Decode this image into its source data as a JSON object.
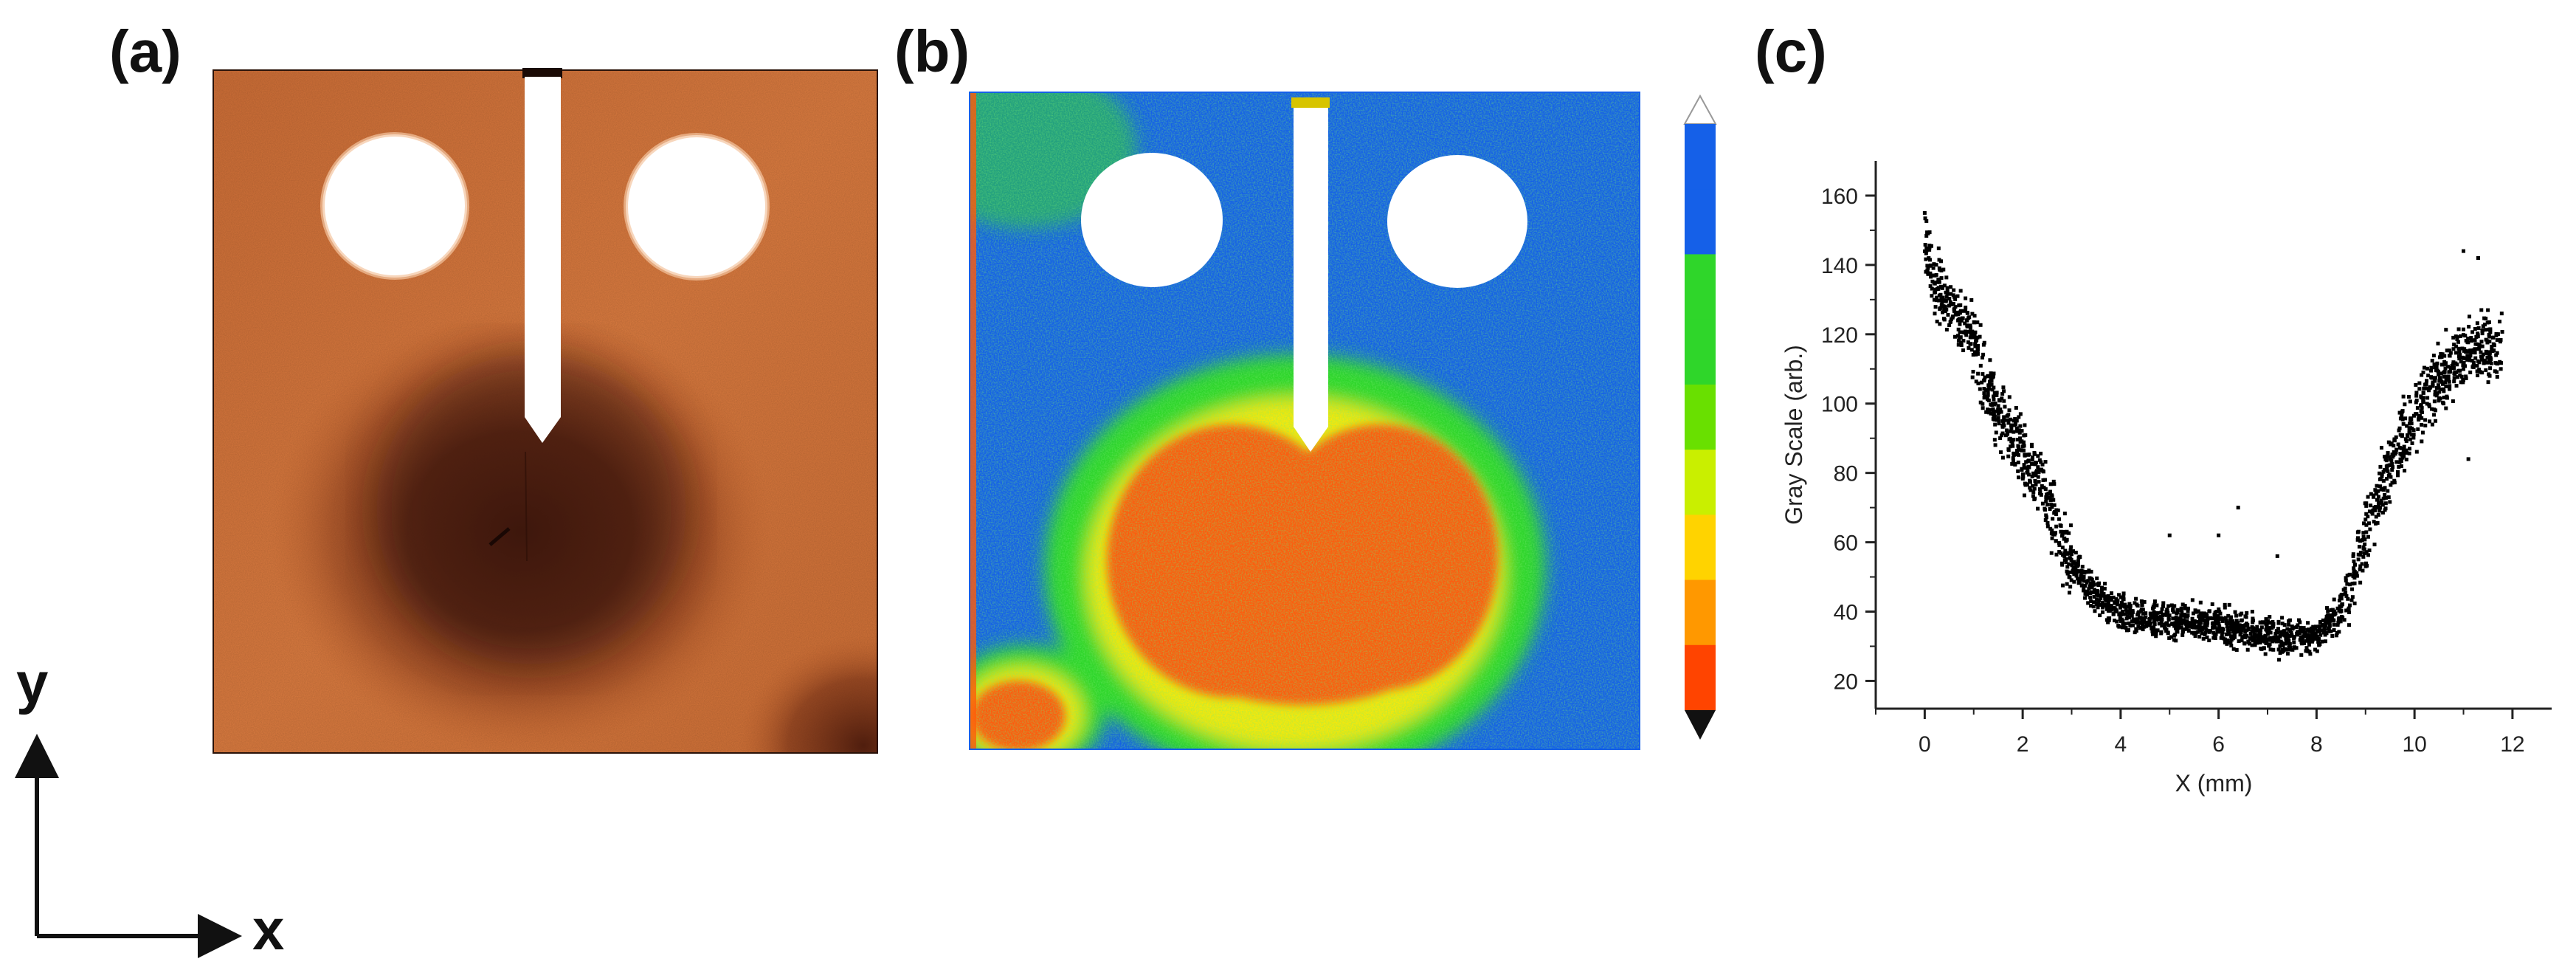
{
  "panels": {
    "a": "(a)",
    "b": "(b)",
    "c": "(c)"
  },
  "coord_axes": {
    "y": "y",
    "x": "x"
  },
  "colors": {
    "specimen_orange": "#d9763a",
    "specimen_dark": "#3a140a",
    "map_blue": "#1560e8",
    "map_green": "#2fd62a",
    "map_yellow": "#f4e80c",
    "map_orange": "#ff5a0a",
    "scatter": "#000000"
  },
  "colorbar": {
    "levels": [
      "#1560e8",
      "#1560e8",
      "#2fd62a",
      "#2fd62a",
      "#69e000",
      "#c9ef00",
      "#ffd300",
      "#ff9800",
      "#ff4400"
    ],
    "top_cap": "triangle-up-white",
    "bottom_cap": "triangle-down-black"
  },
  "chart_data": {
    "type": "scatter",
    "xlabel": "X (mm)",
    "ylabel": "Gray Scale (arb.)",
    "xlim": [
      -1,
      12.8
    ],
    "ylim": [
      12,
      170
    ],
    "xticks": [
      0,
      2,
      4,
      6,
      8,
      10,
      12
    ],
    "yticks": [
      20,
      40,
      60,
      80,
      100,
      120,
      140,
      160
    ],
    "grid": false,
    "trend": [
      {
        "x": 0.0,
        "y": 148
      },
      {
        "x": 0.2,
        "y": 135
      },
      {
        "x": 0.5,
        "y": 128
      },
      {
        "x": 0.8,
        "y": 122
      },
      {
        "x": 1.0,
        "y": 118
      },
      {
        "x": 1.3,
        "y": 104
      },
      {
        "x": 1.6,
        "y": 95
      },
      {
        "x": 2.0,
        "y": 85
      },
      {
        "x": 2.4,
        "y": 76
      },
      {
        "x": 2.8,
        "y": 60
      },
      {
        "x": 3.0,
        "y": 53
      },
      {
        "x": 3.5,
        "y": 45
      },
      {
        "x": 4.0,
        "y": 39
      },
      {
        "x": 4.5,
        "y": 38
      },
      {
        "x": 5.0,
        "y": 37
      },
      {
        "x": 5.5,
        "y": 37
      },
      {
        "x": 6.0,
        "y": 36
      },
      {
        "x": 6.5,
        "y": 35
      },
      {
        "x": 7.0,
        "y": 33
      },
      {
        "x": 7.5,
        "y": 32
      },
      {
        "x": 8.0,
        "y": 33
      },
      {
        "x": 8.5,
        "y": 40
      },
      {
        "x": 8.8,
        "y": 52
      },
      {
        "x": 9.2,
        "y": 72
      },
      {
        "x": 9.6,
        "y": 85
      },
      {
        "x": 10.0,
        "y": 98
      },
      {
        "x": 10.4,
        "y": 105
      },
      {
        "x": 10.8,
        "y": 112
      },
      {
        "x": 11.2,
        "y": 116
      },
      {
        "x": 11.5,
        "y": 115
      },
      {
        "x": 11.8,
        "y": 117
      }
    ],
    "outliers": [
      {
        "x": 0.0,
        "y": 155
      },
      {
        "x": 5.0,
        "y": 62
      },
      {
        "x": 6.0,
        "y": 62
      },
      {
        "x": 6.4,
        "y": 70
      },
      {
        "x": 7.2,
        "y": 56
      },
      {
        "x": 11.0,
        "y": 144
      },
      {
        "x": 11.3,
        "y": 142
      },
      {
        "x": 11.1,
        "y": 84
      }
    ]
  }
}
